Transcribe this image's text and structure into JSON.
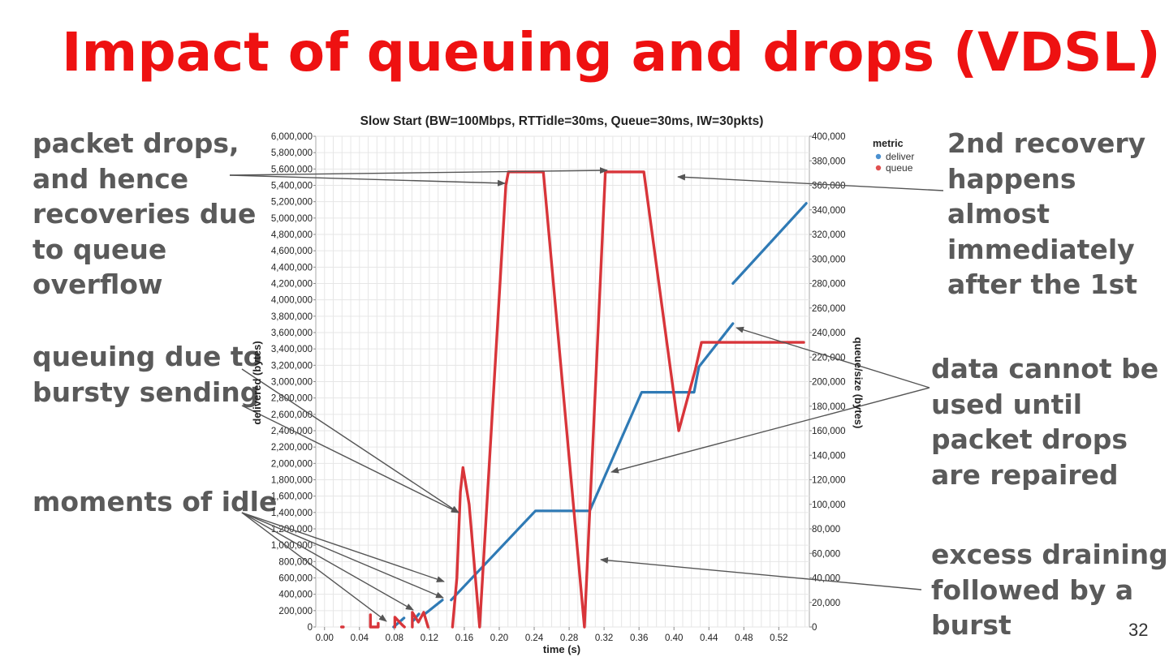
{
  "slide": {
    "title": "Impact of queuing and drops (VDSL)",
    "page_number": "32"
  },
  "annotations": {
    "packet_drops": "packet drops,\nand hence\nrecoveries due\nto queue\noverflow",
    "bursty": "queuing due to\nbursty sending",
    "idle": "moments of idle",
    "second_recovery": "2nd recovery\nhappens\nalmost\nimmediately\nafter the 1st",
    "data_cannot": "data cannot be\nused until\npacket drops\nare repaired",
    "excess_draining": "excess draining\nfollowed by a\nburst"
  },
  "colors": {
    "title": "#ee1111",
    "annotation_text": "#5a5a5a",
    "deliver": "#2f7ab5",
    "queue": "#d8353a"
  },
  "chart_data": {
    "type": "line",
    "title": "Slow Start (BW=100Mbps, RTTidle=30ms, Queue=30ms, IW=30pkts)",
    "xlabel": "time (s)",
    "ylabel_left": "delivered (bytes)",
    "ylabel_right": "queue/size (bytes)",
    "xlim": [
      -0.01,
      0.555
    ],
    "ylim_left": [
      0,
      6000000
    ],
    "ylim_right": [
      0,
      400000
    ],
    "x_ticks": [
      0.0,
      0.04,
      0.08,
      0.12,
      0.16,
      0.2,
      0.24,
      0.28,
      0.32,
      0.36,
      0.4,
      0.44,
      0.48,
      0.52
    ],
    "x_tick_labels": [
      "0.00",
      "0.04",
      "0.08",
      "0.12",
      "0.16",
      "0.20",
      "0.24",
      "0.28",
      "0.32",
      "0.36",
      "0.40",
      "0.44",
      "0.48",
      "0.52"
    ],
    "y_left_tick_labels": [
      "0",
      "200,000",
      "400,000",
      "600,000",
      "800,000",
      "1,000,000",
      "1,200,000",
      "1,400,000",
      "1,600,000",
      "1,800,000",
      "2,000,000",
      "2,200,000",
      "2,400,000",
      "2,600,000",
      "2,800,000",
      "3,000,000",
      "3,200,000",
      "3,400,000",
      "3,600,000",
      "3,800,000",
      "4,000,000",
      "4,200,000",
      "4,400,000",
      "4,600,000",
      "4,800,000",
      "5,000,000",
      "5,200,000",
      "5,400,000",
      "5,600,000",
      "5,800,000",
      "6,000,000"
    ],
    "y_right_tick_labels": [
      "0",
      "20,000",
      "40,000",
      "60,000",
      "80,000",
      "100,000",
      "120,000",
      "140,000",
      "160,000",
      "180,000",
      "200,000",
      "220,000",
      "240,000",
      "260,000",
      "280,000",
      "300,000",
      "320,000",
      "340,000",
      "360,000",
      "380,000",
      "400,000"
    ],
    "grid": true,
    "legend": {
      "title": "metric",
      "placement": "top-right",
      "entries": [
        "deliver",
        "queue"
      ]
    },
    "series": [
      {
        "name": "deliver",
        "axis": "left",
        "segments": [
          [
            [
              0.079,
              0
            ],
            [
              0.091,
              110000
            ]
          ],
          [
            [
              0.102,
              80000
            ],
            [
              0.108,
              160000
            ]
          ],
          [
            [
              0.115,
              160000
            ],
            [
              0.135,
              330000
            ]
          ],
          [
            [
              0.145,
              330000
            ],
            [
              0.2415,
              1420000
            ],
            [
              0.3035,
              1420000
            ],
            [
              0.363,
              2870000
            ],
            [
              0.423,
              2870000
            ],
            [
              0.4285,
              3180000
            ],
            [
              0.4675,
              3710000
            ]
          ],
          [
            [
              0.4675,
              4200000
            ],
            [
              0.5515,
              5180000
            ]
          ]
        ]
      },
      {
        "name": "queue",
        "axis": "right",
        "segments": [
          [
            [
              0.0195,
              0
            ],
            [
              0.0215,
              0
            ]
          ],
          [
            [
              0.0525,
              5000
            ],
            [
              0.0525,
              10000
            ],
            [
              0.0525,
              0
            ],
            [
              0.0615,
              0
            ],
            [
              0.0615,
              3000
            ]
          ],
          [
            [
              0.0805,
              0
            ],
            [
              0.0805,
              8000
            ],
            [
              0.0885,
              2000
            ],
            [
              0.0915,
              0
            ]
          ],
          [
            [
              0.1005,
              0
            ],
            [
              0.1005,
              12000
            ],
            [
              0.1075,
              4000
            ],
            [
              0.1135,
              12000
            ],
            [
              0.1185,
              0
            ]
          ],
          [
            [
              0.1465,
              0
            ],
            [
              0.1515,
              40000
            ],
            [
              0.1555,
              110000
            ],
            [
              0.1585,
              130000
            ],
            [
              0.1655,
              100000
            ],
            [
              0.1775,
              0
            ],
            [
              0.2075,
              360000
            ],
            [
              0.2105,
              371000
            ],
            [
              0.2505,
              371000
            ],
            [
              0.2975,
              0
            ],
            [
              0.3215,
              371000
            ],
            [
              0.3655,
              371000
            ],
            [
              0.4055,
              160000
            ],
            [
              0.4245,
              210000
            ],
            [
              0.4315,
              232000
            ],
            [
              0.5485,
              232000
            ]
          ]
        ]
      }
    ]
  }
}
